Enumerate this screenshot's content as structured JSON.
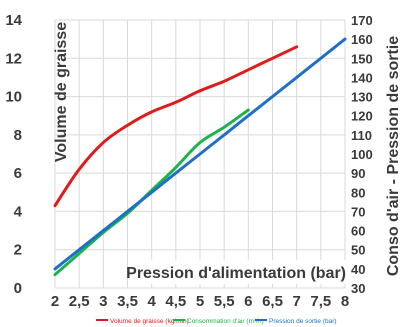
{
  "chart_data": {
    "type": "line",
    "title": "",
    "xlabel": "Pression d'alimentation (bar)",
    "ylabel": "Volume de graisse",
    "y2label": "Conso d'air - Pression de sortie",
    "x": [
      2,
      2.5,
      3,
      3.5,
      4,
      4.5,
      5,
      5.5,
      6,
      6.5,
      7,
      7.5,
      8
    ],
    "xticks": [
      "2",
      "2,5",
      "3",
      "3,5",
      "4",
      "4,5",
      "5",
      "5,5",
      "6",
      "6,5",
      "7",
      "7,5",
      "8"
    ],
    "ylim": [
      0,
      14
    ],
    "yticks": [
      "0",
      "2",
      "4",
      "6",
      "8",
      "10",
      "12",
      "14"
    ],
    "y2lim": [
      30,
      170
    ],
    "y2ticks": [
      "30",
      "40",
      "50",
      "60",
      "70",
      "80",
      "90",
      "100",
      "110",
      "120",
      "130",
      "140",
      "150",
      "160",
      "170"
    ],
    "grid": true,
    "legend_position": "bottom",
    "series": [
      {
        "name": "Volume de graisse (kg/min)",
        "axis": "left",
        "color": "#e01b1b",
        "values": [
          4.3,
          6.2,
          7.6,
          8.5,
          9.2,
          9.7,
          10.3,
          10.8,
          11.4,
          12.0,
          12.6,
          null,
          null
        ]
      },
      {
        "name": "Consommation d'air (m³/h)",
        "axis": "left",
        "color": "#1db34a",
        "values": [
          0.7,
          1.8,
          2.9,
          3.9,
          5.1,
          6.3,
          7.6,
          8.4,
          9.3,
          null,
          null,
          null,
          null
        ]
      },
      {
        "name": "Pression de sortie (bar)",
        "axis": "left",
        "color": "#1f6fc7",
        "values": [
          1.0,
          2.0,
          3.0,
          4.0,
          5.0,
          6.0,
          7.0,
          8.0,
          9.0,
          10.0,
          11.0,
          12.0,
          13.0
        ]
      }
    ]
  }
}
